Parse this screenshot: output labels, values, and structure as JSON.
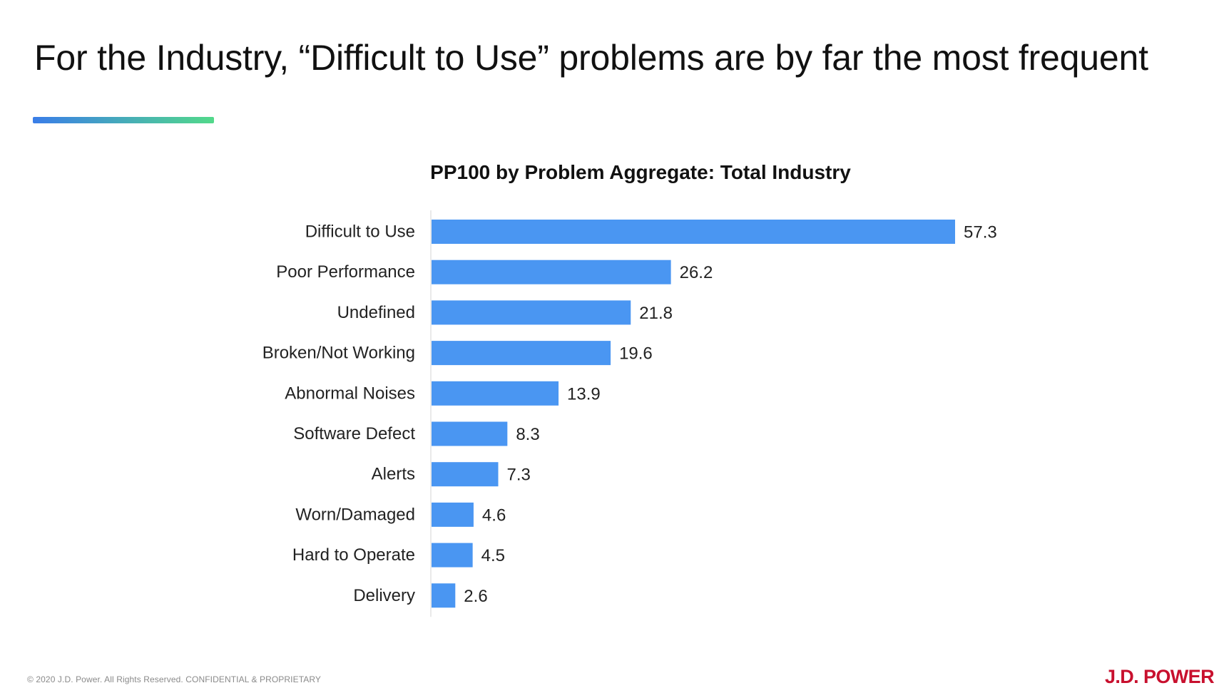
{
  "slide": {
    "title": "For the Industry, “Difficult to Use” problems are by far the most frequent"
  },
  "accent_gradient": [
    "#3a7de8",
    "#52d98a"
  ],
  "chart_data": {
    "type": "bar",
    "orientation": "horizontal",
    "title": "PP100 by Problem Aggregate: Total Industry",
    "categories": [
      "Difficult to Use",
      "Poor Performance",
      "Undefined",
      "Broken/Not Working",
      "Abnormal Noises",
      "Software Defect",
      "Alerts",
      "Worn/Damaged",
      "Hard to Operate",
      "Delivery"
    ],
    "values": [
      57.3,
      26.2,
      21.8,
      19.6,
      13.9,
      8.3,
      7.3,
      4.6,
      4.5,
      2.6
    ],
    "data_labels": [
      "57.3",
      "26.2",
      "21.8",
      "19.6",
      "13.9",
      "8.3",
      "7.3",
      "4.6",
      "4.5",
      "2.6"
    ],
    "xlabel": "",
    "ylabel": "",
    "xlim": [
      0,
      57.3
    ],
    "grid": false,
    "legend": "none",
    "bar_color": "#4a96f2"
  },
  "footer": {
    "copyright": "© 2020 J.D. Power. All Rights Reserved. CONFIDENTIAL & PROPRIETARY"
  },
  "brand": {
    "name": "J.D. POWER",
    "color": "#c8102e"
  }
}
